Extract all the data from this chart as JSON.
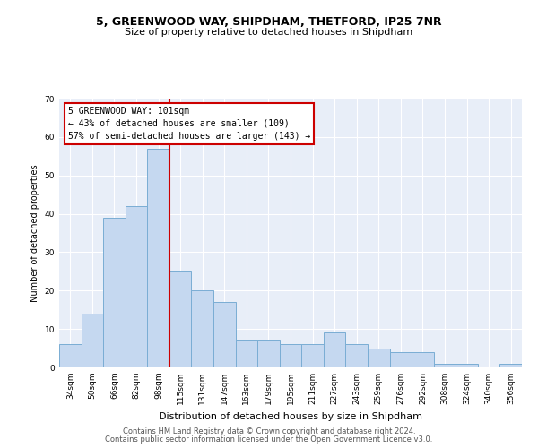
{
  "title_line1": "5, GREENWOOD WAY, SHIPDHAM, THETFORD, IP25 7NR",
  "title_line2": "Size of property relative to detached houses in Shipdham",
  "xlabel": "Distribution of detached houses by size in Shipdham",
  "ylabel": "Number of detached properties",
  "categories": [
    "34sqm",
    "50sqm",
    "66sqm",
    "82sqm",
    "98sqm",
    "115sqm",
    "131sqm",
    "147sqm",
    "163sqm",
    "179sqm",
    "195sqm",
    "211sqm",
    "227sqm",
    "243sqm",
    "259sqm",
    "276sqm",
    "292sqm",
    "308sqm",
    "324sqm",
    "340sqm",
    "356sqm"
  ],
  "values": [
    6,
    14,
    39,
    42,
    57,
    25,
    20,
    17,
    7,
    7,
    6,
    6,
    9,
    6,
    5,
    4,
    4,
    1,
    1,
    0,
    1
  ],
  "bar_color": "#c5d8f0",
  "bar_edge_color": "#7aadd4",
  "red_line_index": 4,
  "annotation_line1": "5 GREENWOOD WAY: 101sqm",
  "annotation_line2": "← 43% of detached houses are smaller (109)",
  "annotation_line3": "57% of semi-detached houses are larger (143) →",
  "vline_color": "#cc0000",
  "ylim": [
    0,
    70
  ],
  "yticks": [
    0,
    10,
    20,
    30,
    40,
    50,
    60,
    70
  ],
  "footer_line1": "Contains HM Land Registry data © Crown copyright and database right 2024.",
  "footer_line2": "Contains public sector information licensed under the Open Government Licence v3.0.",
  "background_color": "#e8eef8",
  "grid_color": "#ffffff",
  "title1_fontsize": 9,
  "title2_fontsize": 8,
  "xlabel_fontsize": 8,
  "ylabel_fontsize": 7,
  "tick_fontsize": 6.5,
  "annotation_fontsize": 7,
  "footer_fontsize": 6
}
